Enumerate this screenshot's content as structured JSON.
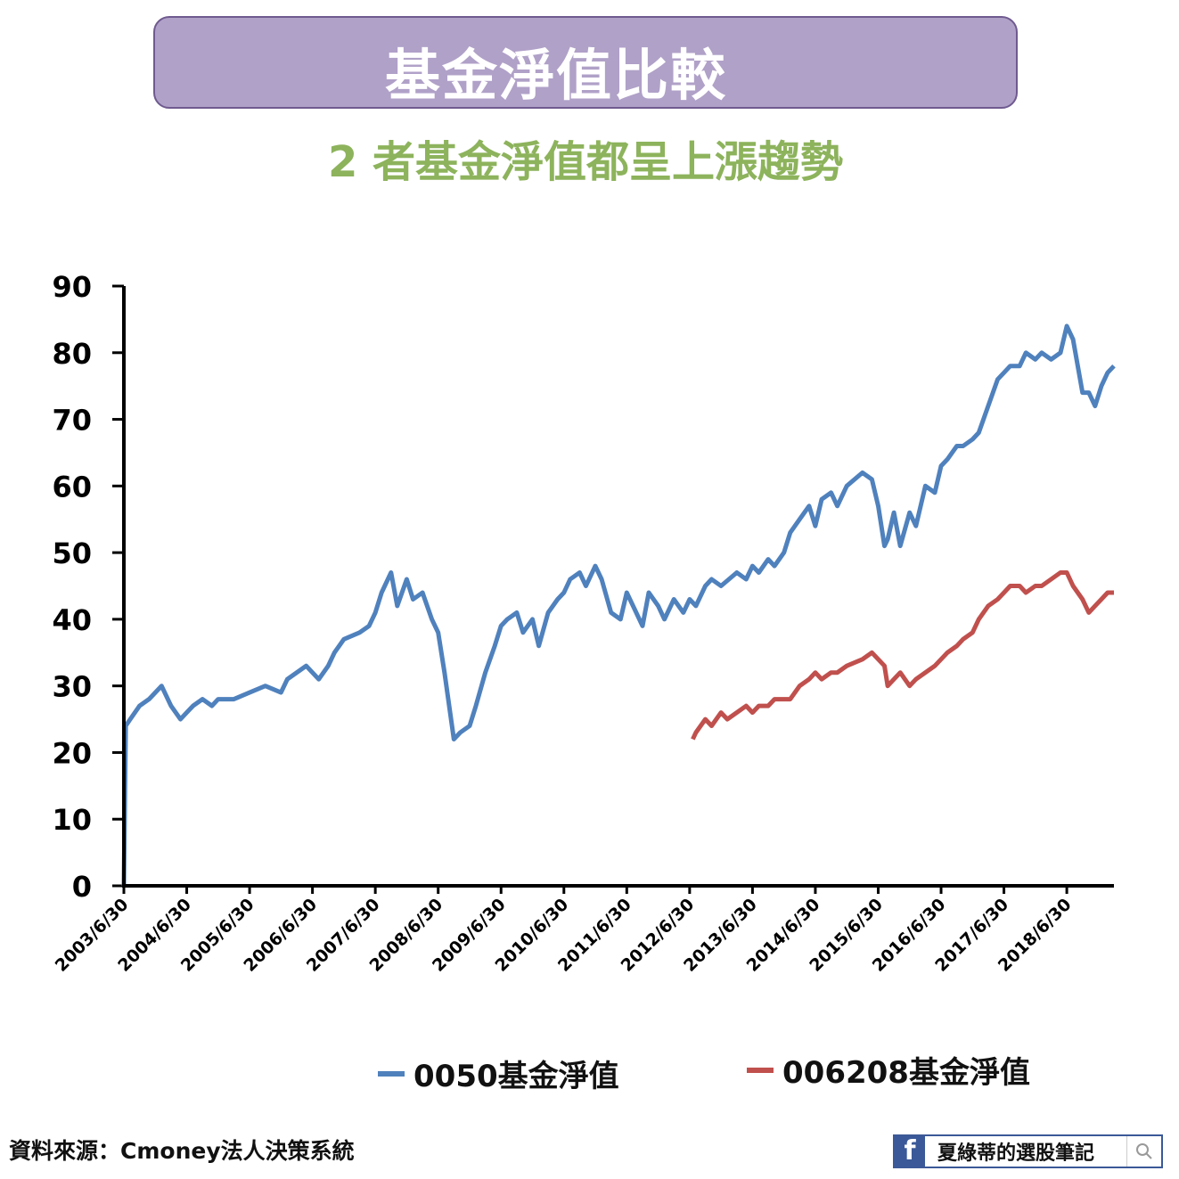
{
  "header": {
    "title": "基金淨值比較",
    "subtitle": "2 者基金淨值都呈上漲趨勢"
  },
  "footer": {
    "source": "資料來源：Cmoney法人決策系統",
    "fb_label": "夏綠蒂的選股筆記",
    "fb_icon": "f"
  },
  "colors": {
    "series_0050": "#4f81bd",
    "series_006208": "#c0504d",
    "title_bg": "#b0a1c8",
    "subtitle": "#8db35c"
  },
  "chart_data": {
    "type": "line",
    "ylim": [
      0,
      90
    ],
    "yticks": [
      0,
      10,
      20,
      30,
      40,
      50,
      60,
      70,
      80,
      90
    ],
    "x_tick_labels": [
      "2003/6/30",
      "2004/6/30",
      "2005/6/30",
      "2006/6/30",
      "2007/6/30",
      "2008/6/30",
      "2009/6/30",
      "2010/6/30",
      "2011/6/30",
      "2012/6/30",
      "2013/6/30",
      "2014/6/30",
      "2015/6/30",
      "2016/6/30",
      "2017/6/30",
      "2018/6/30"
    ],
    "x_tick_years": [
      2003.5,
      2004.5,
      2005.5,
      2006.5,
      2007.5,
      2008.5,
      2009.5,
      2010.5,
      2011.5,
      2012.5,
      2013.5,
      2014.5,
      2015.5,
      2016.5,
      2017.5,
      2018.5
    ],
    "xlim": [
      2003.5,
      2019.25
    ],
    "legend": "bottom",
    "series": [
      {
        "name": "0050基金淨值",
        "x": [
          2003.5,
          2003.53,
          2003.6,
          2003.75,
          2003.9,
          2004.0,
          2004.1,
          2004.25,
          2004.4,
          2004.5,
          2004.6,
          2004.75,
          2004.9,
          2005.0,
          2005.25,
          2005.5,
          2005.75,
          2006.0,
          2006.1,
          2006.25,
          2006.4,
          2006.5,
          2006.6,
          2006.75,
          2006.85,
          2007.0,
          2007.25,
          2007.4,
          2007.5,
          2007.6,
          2007.75,
          2007.85,
          2008.0,
          2008.1,
          2008.25,
          2008.4,
          2008.5,
          2008.6,
          2008.75,
          2008.85,
          2009.0,
          2009.1,
          2009.25,
          2009.4,
          2009.5,
          2009.6,
          2009.75,
          2009.85,
          2010.0,
          2010.1,
          2010.25,
          2010.4,
          2010.5,
          2010.6,
          2010.75,
          2010.85,
          2011.0,
          2011.1,
          2011.25,
          2011.4,
          2011.5,
          2011.6,
          2011.75,
          2011.85,
          2012.0,
          2012.1,
          2012.25,
          2012.4,
          2012.5,
          2012.6,
          2012.75,
          2012.85,
          2013.0,
          2013.25,
          2013.4,
          2013.5,
          2013.6,
          2013.75,
          2013.85,
          2014.0,
          2014.1,
          2014.25,
          2014.4,
          2014.5,
          2014.6,
          2014.75,
          2014.85,
          2015.0,
          2015.25,
          2015.4,
          2015.5,
          2015.6,
          2015.65,
          2015.75,
          2015.85,
          2016.0,
          2016.1,
          2016.25,
          2016.4,
          2016.5,
          2016.6,
          2016.75,
          2016.85,
          2017.0,
          2017.1,
          2017.25,
          2017.4,
          2017.5,
          2017.6,
          2017.75,
          2017.85,
          2018.0,
          2018.1,
          2018.25,
          2018.4,
          2018.5,
          2018.6,
          2018.75,
          2018.85,
          2018.95,
          2019.05,
          2019.15,
          2019.25
        ],
        "values": [
          0,
          24,
          25,
          27,
          28,
          29,
          30,
          27,
          25,
          26,
          27,
          28,
          27,
          28,
          28,
          29,
          30,
          29,
          31,
          32,
          33,
          32,
          31,
          33,
          35,
          37,
          38,
          39,
          41,
          44,
          47,
          42,
          46,
          43,
          44,
          40,
          38,
          32,
          22,
          23,
          24,
          27,
          32,
          36,
          39,
          40,
          41,
          38,
          40,
          36,
          41,
          43,
          44,
          46,
          47,
          45,
          48,
          46,
          41,
          40,
          44,
          42,
          39,
          44,
          42,
          40,
          43,
          41,
          43,
          42,
          45,
          46,
          45,
          47,
          46,
          48,
          47,
          49,
          48,
          50,
          53,
          55,
          57,
          54,
          58,
          59,
          57,
          60,
          62,
          61,
          57,
          51,
          52,
          56,
          51,
          56,
          54,
          60,
          59,
          63,
          64,
          66,
          66,
          67,
          68,
          72,
          76,
          77,
          78,
          78,
          80,
          79,
          80,
          79,
          80,
          84,
          82,
          74,
          74,
          72,
          75,
          77,
          78
        ]
      },
      {
        "name": "006208基金淨值",
        "x": [
          2012.55,
          2012.6,
          2012.75,
          2012.85,
          2013.0,
          2013.1,
          2013.25,
          2013.4,
          2013.5,
          2013.6,
          2013.75,
          2013.85,
          2014.0,
          2014.1,
          2014.25,
          2014.4,
          2014.5,
          2014.6,
          2014.75,
          2014.85,
          2015.0,
          2015.25,
          2015.4,
          2015.5,
          2015.6,
          2015.65,
          2015.75,
          2015.85,
          2016.0,
          2016.1,
          2016.25,
          2016.4,
          2016.5,
          2016.6,
          2016.75,
          2016.85,
          2017.0,
          2017.1,
          2017.25,
          2017.4,
          2017.5,
          2017.6,
          2017.75,
          2017.85,
          2018.0,
          2018.1,
          2018.25,
          2018.4,
          2018.5,
          2018.6,
          2018.75,
          2018.85,
          2018.95,
          2019.05,
          2019.15,
          2019.25
        ],
        "values": [
          22,
          23,
          25,
          24,
          26,
          25,
          26,
          27,
          26,
          27,
          27,
          28,
          28,
          28,
          30,
          31,
          32,
          31,
          32,
          32,
          33,
          34,
          35,
          34,
          33,
          30,
          31,
          32,
          30,
          31,
          32,
          33,
          34,
          35,
          36,
          37,
          38,
          40,
          42,
          43,
          44,
          45,
          45,
          44,
          45,
          45,
          46,
          47,
          47,
          45,
          43,
          41,
          42,
          43,
          44,
          44
        ]
      }
    ]
  }
}
